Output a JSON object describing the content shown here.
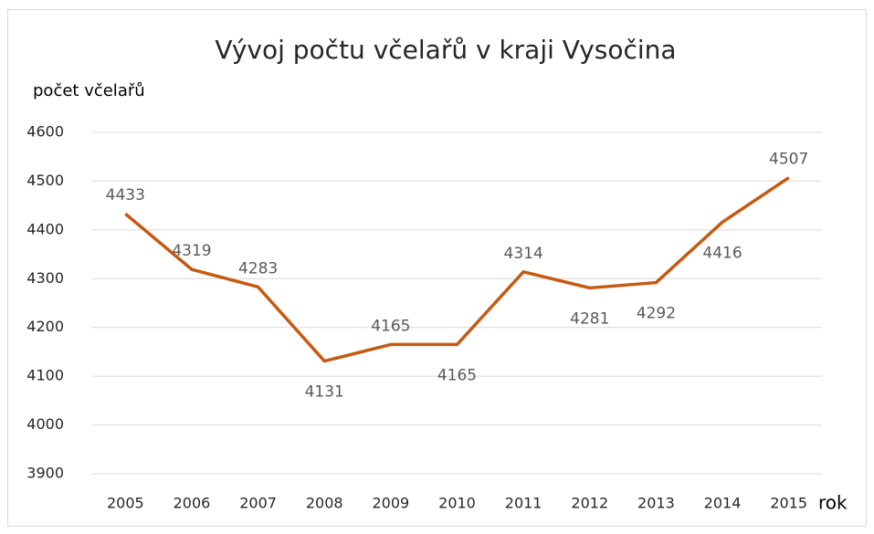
{
  "chart_data": {
    "type": "line",
    "title": "Vývoj počtu včelařů v kraji Vysočina",
    "y_label": "počet včelařů",
    "x_label": "rok",
    "categories": [
      "2005",
      "2006",
      "2007",
      "2008",
      "2009",
      "2010",
      "2011",
      "2012",
      "2013",
      "2014",
      "2015"
    ],
    "series": [
      {
        "name": "počet včelařů",
        "color": "#c55a11",
        "values": [
          4433,
          4319,
          4283,
          4131,
          4165,
          4165,
          4314,
          4281,
          4292,
          4416,
          4507
        ]
      }
    ],
    "ylim": [
      3900,
      4600
    ],
    "yticks": [
      3900,
      4000,
      4100,
      4200,
      4300,
      4400,
      4500,
      4600
    ],
    "grid": true
  }
}
